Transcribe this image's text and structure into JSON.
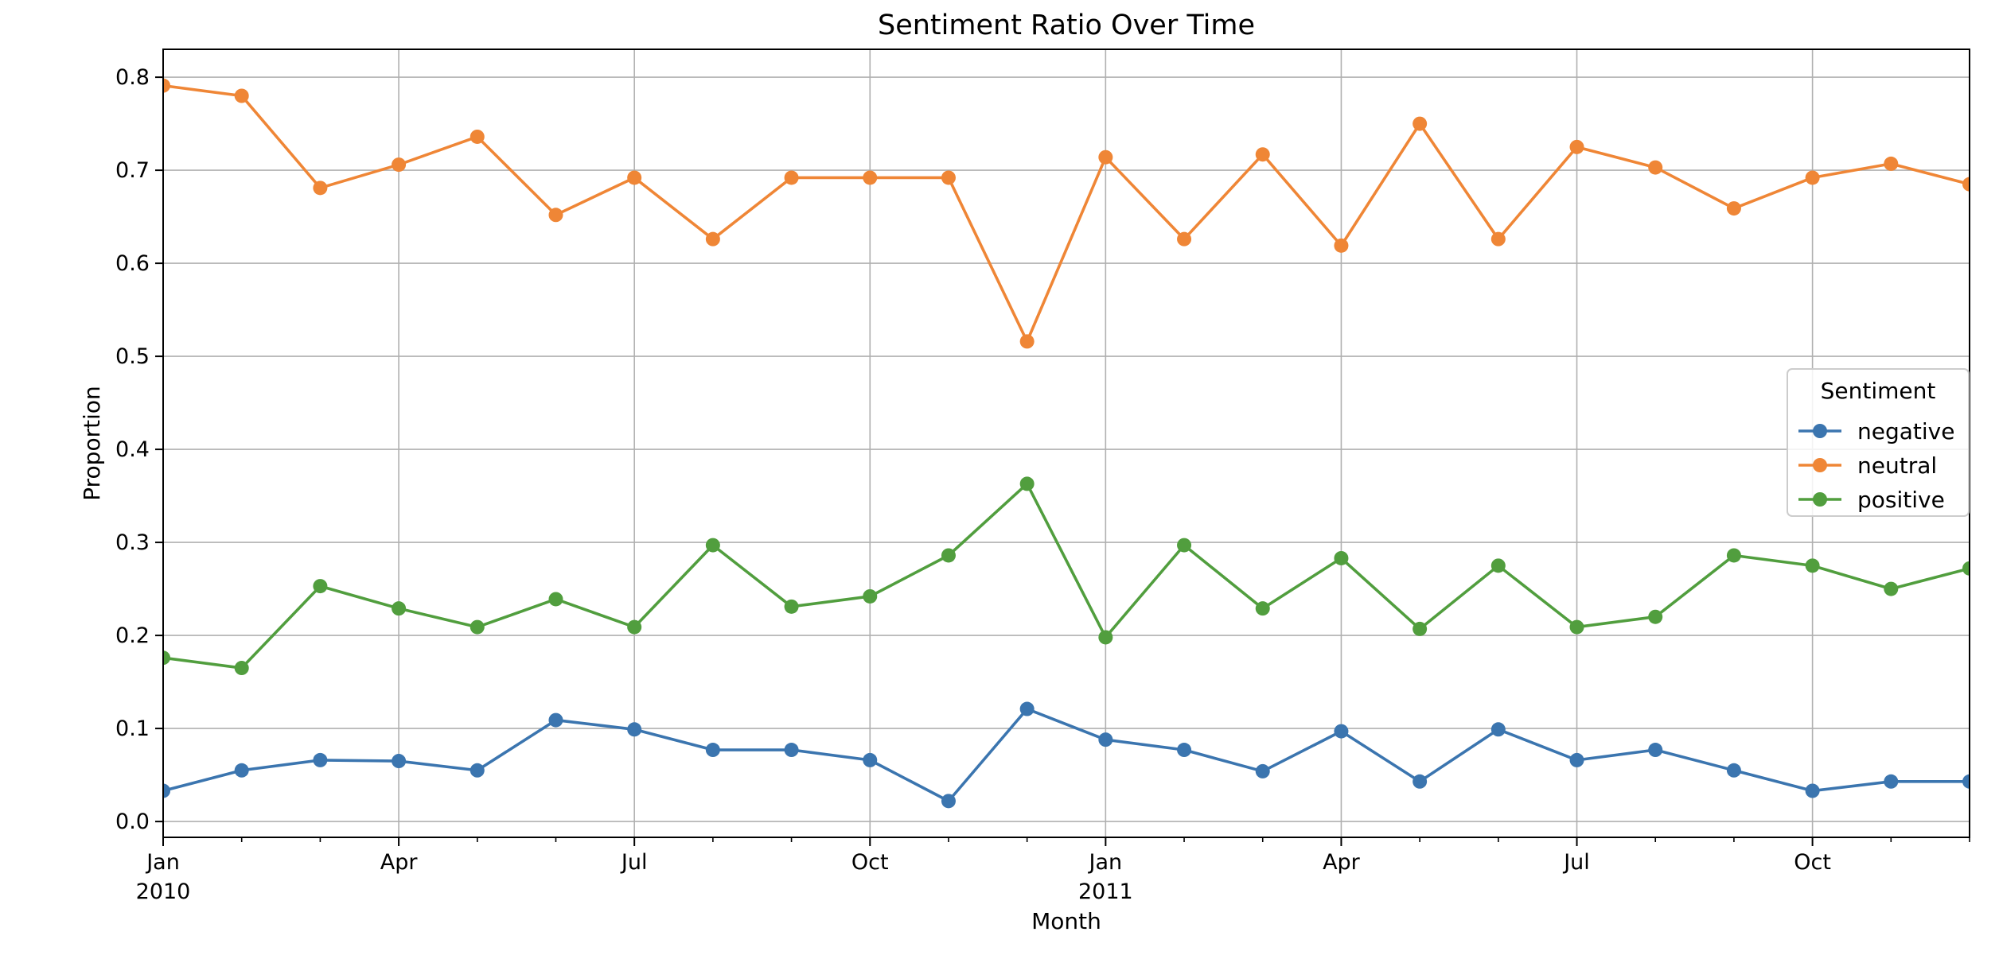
{
  "chart_data": {
    "type": "line",
    "title": "Sentiment Ratio Over Time",
    "xlabel": "Month",
    "ylabel": "Proportion",
    "xlim": [
      "2010-01",
      "2011-12"
    ],
    "ylim": [
      -0.017,
      0.83
    ],
    "grid": true,
    "x": [
      "2010-01",
      "2010-02",
      "2010-03",
      "2010-04",
      "2010-05",
      "2010-06",
      "2010-07",
      "2010-08",
      "2010-09",
      "2010-10",
      "2010-11",
      "2010-12",
      "2011-01",
      "2011-02",
      "2011-03",
      "2011-04",
      "2011-05",
      "2011-06",
      "2011-07",
      "2011-08",
      "2011-09",
      "2011-10",
      "2011-11",
      "2011-12"
    ],
    "x_ticks": [
      {
        "x": "2010-01",
        "label": "Jan",
        "sub": "2010"
      },
      {
        "x": "2010-04",
        "label": "Apr",
        "sub": ""
      },
      {
        "x": "2010-07",
        "label": "Jul",
        "sub": ""
      },
      {
        "x": "2010-10",
        "label": "Oct",
        "sub": ""
      },
      {
        "x": "2011-01",
        "label": "Jan",
        "sub": "2011"
      },
      {
        "x": "2011-04",
        "label": "Apr",
        "sub": ""
      },
      {
        "x": "2011-07",
        "label": "Jul",
        "sub": ""
      },
      {
        "x": "2011-10",
        "label": "Oct",
        "sub": ""
      }
    ],
    "y_ticks": [
      0.0,
      0.1,
      0.2,
      0.3,
      0.4,
      0.5,
      0.6,
      0.7,
      0.8
    ],
    "y_tick_labels": [
      "0.0",
      "0.1",
      "0.2",
      "0.3",
      "0.4",
      "0.5",
      "0.6",
      "0.7",
      "0.8"
    ],
    "legend": {
      "title": "Sentiment",
      "position": "center-right"
    },
    "series": [
      {
        "name": "negative",
        "color": "#3b75af",
        "values": [
          0.033,
          0.055,
          0.066,
          0.065,
          0.055,
          0.109,
          0.099,
          0.077,
          0.077,
          0.066,
          0.022,
          0.121,
          0.088,
          0.077,
          0.054,
          0.097,
          0.043,
          0.099,
          0.066,
          0.077,
          0.055,
          0.033,
          0.043,
          0.043
        ]
      },
      {
        "name": "neutral",
        "color": "#ef8636",
        "values": [
          0.791,
          0.78,
          0.681,
          0.706,
          0.736,
          0.652,
          0.692,
          0.626,
          0.692,
          0.692,
          0.692,
          0.516,
          0.714,
          0.626,
          0.717,
          0.619,
          0.75,
          0.626,
          0.725,
          0.703,
          0.659,
          0.692,
          0.707,
          0.685
        ]
      },
      {
        "name": "positive",
        "color": "#519e3e",
        "values": [
          0.176,
          0.165,
          0.253,
          0.229,
          0.209,
          0.239,
          0.209,
          0.297,
          0.231,
          0.242,
          0.286,
          0.363,
          0.198,
          0.297,
          0.229,
          0.283,
          0.207,
          0.275,
          0.209,
          0.22,
          0.286,
          0.275,
          0.25,
          0.272
        ]
      }
    ]
  }
}
